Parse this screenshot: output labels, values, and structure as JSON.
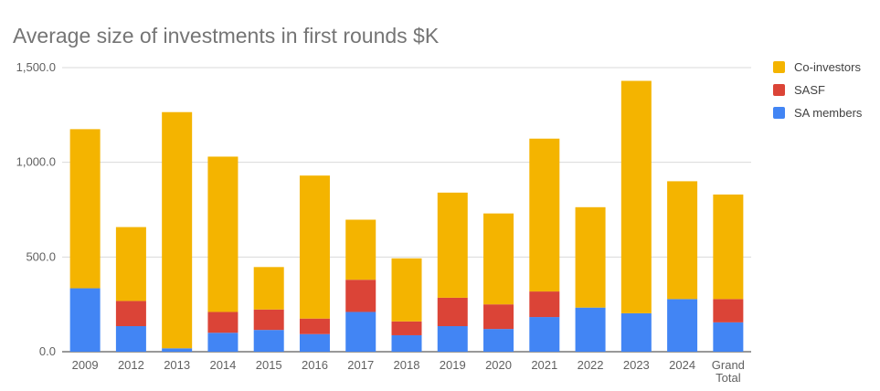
{
  "chart_data": {
    "type": "bar",
    "stacked": true,
    "title": "Average size of investments in first rounds $K",
    "xlabel": "",
    "ylabel": "",
    "ylim": [
      0,
      1500
    ],
    "yticks": [
      "0.0",
      "500.0",
      "1,000.0",
      "1,500.0"
    ],
    "ytick_values": [
      0,
      500,
      1000,
      1500
    ],
    "grid": true,
    "legend_position": "right",
    "categories": [
      "2009",
      "2012",
      "2013",
      "2014",
      "2015",
      "2016",
      "2017",
      "2018",
      "2019",
      "2020",
      "2021",
      "2022",
      "2023",
      "2024",
      "Grand Total"
    ],
    "series": [
      {
        "name": "SA members",
        "color": "#4285f4",
        "values": [
          335,
          135,
          18,
          100,
          115,
          93,
          210,
          87,
          135,
          120,
          183,
          233,
          203,
          278,
          155
        ]
      },
      {
        "name": "SASF",
        "color": "#db4437",
        "values": [
          0,
          133,
          0,
          110,
          108,
          82,
          170,
          73,
          150,
          130,
          135,
          0,
          0,
          0,
          123
        ]
      },
      {
        "name": "Co-investors",
        "color": "#f4b400",
        "values": [
          840,
          390,
          1247,
          820,
          224,
          755,
          317,
          333,
          555,
          480,
          807,
          530,
          1227,
          622,
          552
        ]
      }
    ]
  }
}
